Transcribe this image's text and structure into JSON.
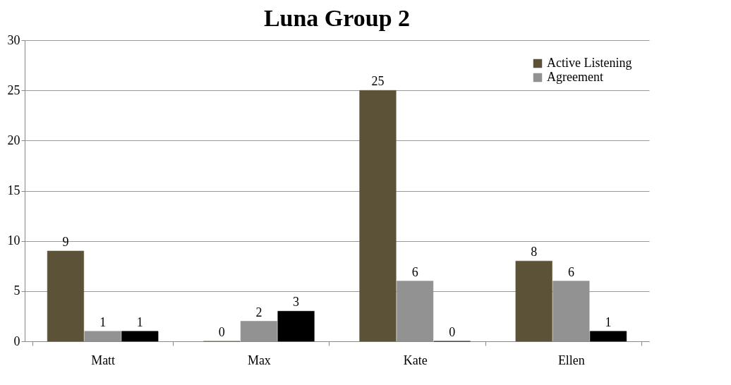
{
  "chart_data": {
    "type": "bar",
    "title": "Luna Group 2",
    "categories": [
      "Matt",
      "Max",
      "Kate",
      "Ellen"
    ],
    "series": [
      {
        "name": "Active Listening",
        "color": "#5b5237",
        "values": [
          9,
          0,
          25,
          8
        ]
      },
      {
        "name": "Agreement",
        "color": "#929292",
        "values": [
          1,
          2,
          6,
          6
        ]
      },
      {
        "color": "#000000",
        "values": [
          1,
          3,
          0,
          1
        ]
      }
    ],
    "ylim": [
      0,
      30
    ],
    "yticks": [
      0,
      5,
      10,
      15,
      20,
      25,
      30
    ],
    "grid": "y",
    "legend": "top right",
    "data_labels": true
  }
}
